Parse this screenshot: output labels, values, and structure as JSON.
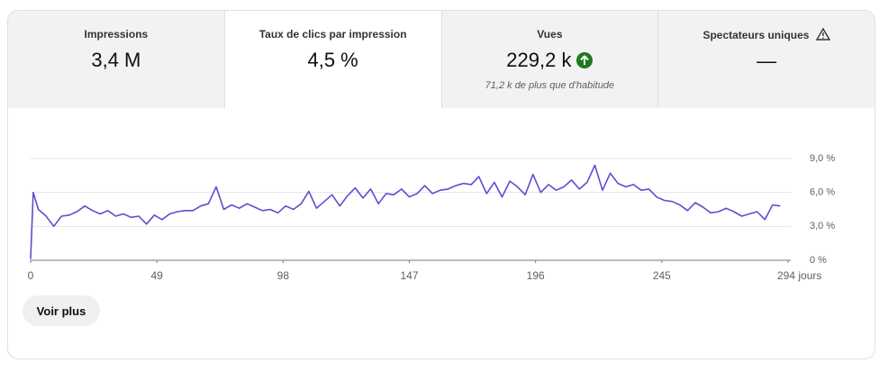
{
  "tabs": [
    {
      "label": "Impressions",
      "value": "3,4 M"
    },
    {
      "label": "Taux de clics par impression",
      "value": "4,5 %"
    },
    {
      "label": "Vues",
      "value": "229,2 k",
      "note": "71,2 k de plus que d'habitude"
    },
    {
      "label": "Spectateurs uniques",
      "value": "—"
    }
  ],
  "button": "Voir plus",
  "chart_data": {
    "type": "line",
    "color": "#5b4fcf",
    "x": [
      0,
      1,
      3,
      6,
      9,
      12,
      15,
      18,
      21,
      24,
      27,
      30,
      33,
      36,
      39,
      42,
      45,
      48,
      51,
      54,
      57,
      60,
      63,
      66,
      69,
      72,
      75,
      78,
      81,
      84,
      87,
      90,
      93,
      96,
      99,
      102,
      105,
      108,
      111,
      114,
      117,
      120,
      123,
      126,
      129,
      132,
      135,
      138,
      141,
      144,
      147,
      150,
      153,
      156,
      159,
      162,
      165,
      168,
      171,
      174,
      177,
      180,
      183,
      186,
      189,
      192,
      195,
      198,
      201,
      204,
      207,
      210,
      213,
      216,
      219,
      222,
      225,
      228,
      231,
      234,
      237,
      240,
      243,
      246,
      249,
      252,
      255,
      258,
      261,
      264,
      267,
      270,
      273,
      276,
      279,
      282,
      285,
      288,
      291
    ],
    "values": [
      0.1,
      6.0,
      4.5,
      3.9,
      3.0,
      3.9,
      4.0,
      4.3,
      4.8,
      4.4,
      4.1,
      4.4,
      3.9,
      4.1,
      3.8,
      3.9,
      3.2,
      4.0,
      3.6,
      4.1,
      4.3,
      4.4,
      4.4,
      4.8,
      5.0,
      6.5,
      4.5,
      4.9,
      4.6,
      5.0,
      4.7,
      4.4,
      4.5,
      4.2,
      4.8,
      4.5,
      5.0,
      6.1,
      4.6,
      5.2,
      5.8,
      4.8,
      5.7,
      6.4,
      5.5,
      6.3,
      5.0,
      5.9,
      5.8,
      6.3,
      5.6,
      5.9,
      6.6,
      5.9,
      6.2,
      6.3,
      6.6,
      6.8,
      6.7,
      7.4,
      5.9,
      6.9,
      5.6,
      7.0,
      6.5,
      5.8,
      7.6,
      6.0,
      6.7,
      6.2,
      6.5,
      7.1,
      6.3,
      6.9,
      8.4,
      6.2,
      7.7,
      6.8,
      6.5,
      6.7,
      6.2,
      6.3,
      5.6,
      5.3,
      5.2,
      4.9,
      4.4,
      5.1,
      4.7,
      4.2,
      4.3,
      4.6,
      4.3,
      3.9,
      4.1,
      4.3,
      3.6,
      4.9,
      4.8
    ],
    "xlim": [
      0,
      294
    ],
    "xticks": [
      0,
      49,
      98,
      147,
      196,
      245,
      {
        "value": 294,
        "label": "294 jours"
      }
    ],
    "ylim": [
      0,
      9
    ],
    "yticks": [
      {
        "value": 0,
        "label": "0 %"
      },
      {
        "value": 3,
        "label": "3,0 %"
      },
      {
        "value": 6,
        "label": "6,0 %"
      },
      {
        "value": 9,
        "label": "9,0 %"
      }
    ],
    "grid": true
  }
}
